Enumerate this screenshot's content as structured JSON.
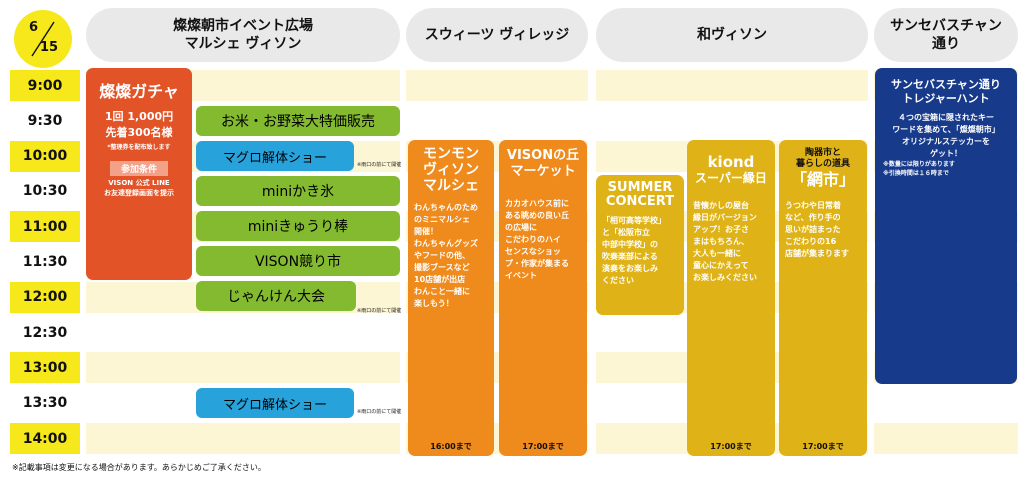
{
  "date": {
    "month": "6",
    "day": "15"
  },
  "headers": {
    "col1_line1": "燦燦朝市イベント広場",
    "col1_line2": "マルシェ ヴィソン",
    "col2": "スウィーツ ヴィレッジ",
    "col3": "和ヴィソン",
    "col4_line1": "サンセバスチャン",
    "col4_line2": "通り"
  },
  "times": [
    "9:00",
    "9:30",
    "10:00",
    "10:30",
    "11:00",
    "11:30",
    "12:00",
    "12:30",
    "13:00",
    "13:30",
    "14:00"
  ],
  "gacha": {
    "title": "燦燦ガチャ",
    "line1": "1回 1,000円",
    "line2": "先着300名様",
    "note": "*整理券を配布致します",
    "cond_label": "参加条件",
    "cond1": "VISON 公式 LINE",
    "cond2": "お友達登録画面を提示"
  },
  "events": {
    "rice": "お米・お野菜大特価販売",
    "tuna1": "マグロ解体ショー",
    "tuna_note": "※雨口の前にて開催",
    "kakigori": "miniかき氷",
    "kyuri": "miniきゅうり棒",
    "auction": "VISON競り市",
    "janken": "じゃんけん大会",
    "tuna2": "マグロ解体ショー"
  },
  "monmon": {
    "title1": "モンモン",
    "title2": "ヴィソン",
    "title3": "マルシェ",
    "body": [
      "わんちゃんのため",
      "のミニマルシェ",
      "開催！",
      "わんちゃんグッズ",
      "やフードの他、",
      "撮影ブースなど",
      "10店舗が出店",
      "わんこと一緒に",
      "楽しもう！"
    ],
    "until": "16:00まで"
  },
  "oka": {
    "title1": "VISONの丘",
    "title2": "マーケット",
    "body": [
      "カカオハウス前に",
      "ある眺めの良い丘",
      "の広場に",
      "こだわりのハイ",
      "センスなショッ",
      "プ・作家が集まる",
      "イベント"
    ],
    "until": "17:00まで"
  },
  "concert": {
    "title1": "SUMMER",
    "title2": "CONCERT",
    "body": [
      "「相可高等学校」",
      "と「松阪市立",
      "中部中学校」の",
      "吹奏楽部による",
      "演奏をお楽しみ",
      "ください"
    ]
  },
  "kiond": {
    "title1": "kiond",
    "title2": "スーパー縁日",
    "body": [
      "昔懐かしの屋台",
      "縁日がバージョン",
      "アップ！お子さ",
      "まはもちろん、",
      "大人も一緒に",
      "童心にかえって",
      "お楽しみください"
    ],
    "until": "17:00まで"
  },
  "ami": {
    "pre1": "陶器市と",
    "pre2": "暮らしの道具",
    "title": "「網市」",
    "body": [
      "うつわや日常着",
      "など、作り手の",
      "思いが詰まった",
      "こだわりの16",
      "店舗が集まります"
    ],
    "until": "17:00まで"
  },
  "treasure": {
    "title1": "サンセバスチャン通り",
    "title2": "トレジャーハント",
    "body": [
      "４つの宝箱に隠されたキー",
      "ワードを集めて、「燦燦朝市」",
      "オリジナルステッカーを",
      "ゲット！"
    ],
    "note1": "※数量には限りがあります",
    "note2": "※引換時間は１６時まで"
  },
  "footnote": "※記載事項は変更になる場合があります。あらかじめご了承ください。",
  "colors": {
    "yellow": "#f6e81a",
    "green": "#83ba2f",
    "blue": "#27a2db",
    "orange": "#ef8a1c",
    "gold": "#dfb318",
    "navy": "#173a8a",
    "red": "#e25327"
  }
}
